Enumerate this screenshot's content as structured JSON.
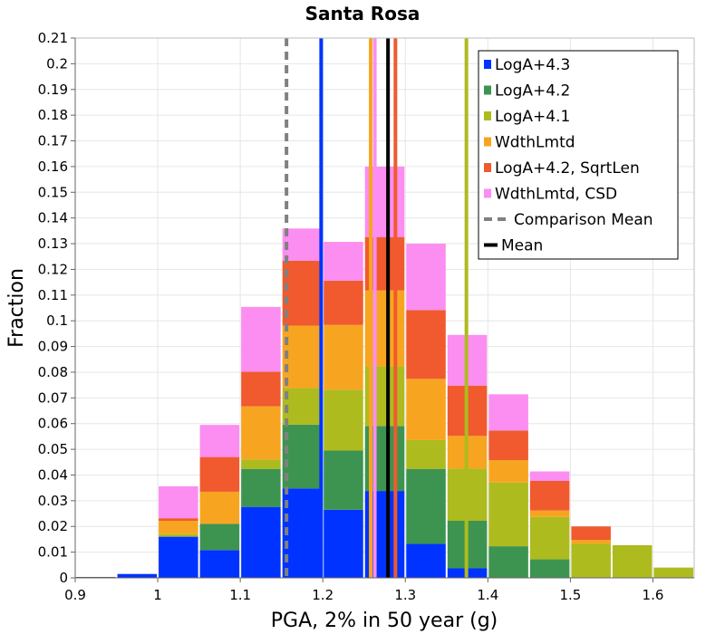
{
  "chart_data": {
    "type": "bar",
    "stacked": true,
    "title": "Santa Rosa",
    "xlabel": "PGA, 2% in 50 year (g)",
    "ylabel": "Fraction",
    "xlim": [
      0.9,
      1.65
    ],
    "ylim": [
      0,
      0.21
    ],
    "x_ticks": [
      0.9,
      1,
      1.1,
      1.2,
      1.3,
      1.4,
      1.5,
      1.6
    ],
    "y_ticks": [
      0,
      0.01,
      0.02,
      0.03,
      0.04,
      0.05,
      0.06,
      0.07,
      0.08,
      0.09,
      0.1,
      0.11,
      0.12,
      0.13,
      0.14,
      0.15,
      0.16,
      0.17,
      0.18,
      0.19,
      0.2,
      0.21
    ],
    "grid": true,
    "legend_position": "top-right",
    "bin_width": 0.05,
    "bin_edges": [
      0.9,
      0.95,
      1.0,
      1.05,
      1.1,
      1.15,
      1.2,
      1.25,
      1.3,
      1.35,
      1.4,
      1.45,
      1.5,
      1.55,
      1.6,
      1.65
    ],
    "series": [
      {
        "name": "LogA+4.3",
        "color": "#0033ff",
        "values": [
          0.0,
          0.0015,
          0.016,
          0.0108,
          0.0276,
          0.0348,
          0.0265,
          0.0338,
          0.0132,
          0.0037,
          0.0,
          0.0,
          0.0,
          0.0,
          0.0
        ]
      },
      {
        "name": "LogA+4.2",
        "color": "#3d9450",
        "values": [
          0.0,
          0.0,
          0.0,
          0.0102,
          0.0148,
          0.0248,
          0.023,
          0.0253,
          0.0292,
          0.0185,
          0.0123,
          0.0072,
          0.0,
          0.0,
          0.0
        ]
      },
      {
        "name": "LogA+4.1",
        "color": "#adbb1e",
        "values": [
          0.0,
          0.0,
          0.001,
          0.0,
          0.0037,
          0.0142,
          0.0237,
          0.0232,
          0.0112,
          0.0203,
          0.0248,
          0.0165,
          0.0132,
          0.0127,
          0.004
        ]
      },
      {
        "name": "WdthLmtd",
        "color": "#f7a520",
        "values": [
          0.0,
          0.0,
          0.0052,
          0.0125,
          0.0206,
          0.0243,
          0.0252,
          0.0295,
          0.0238,
          0.0127,
          0.0087,
          0.0025,
          0.0015,
          0.0,
          0.0
        ]
      },
      {
        "name": "LogA+4.2, SqrtLen",
        "color": "#f05a2e",
        "values": [
          0.0,
          0.0,
          0.001,
          0.0135,
          0.0135,
          0.0253,
          0.0172,
          0.0208,
          0.0268,
          0.0196,
          0.0115,
          0.0115,
          0.0053,
          0.0,
          0.0
        ]
      },
      {
        "name": "WdthLmtd, CSD",
        "color": "#fb8ef0",
        "values": [
          0.0,
          0.0,
          0.0124,
          0.0125,
          0.0252,
          0.0125,
          0.0151,
          0.0274,
          0.0258,
          0.0197,
          0.0141,
          0.0037,
          0.0,
          0.0,
          0.0
        ]
      }
    ],
    "vertical_lines": [
      {
        "name": "LogA+4.3",
        "x": 1.198,
        "color": "#0033ff",
        "style": "solid"
      },
      {
        "name": "WdthLmtd",
        "x": 1.258,
        "color": "#f7a520",
        "style": "solid"
      },
      {
        "name": "WdthLmtd, CSD",
        "x": 1.263,
        "color": "#fb8ef0",
        "style": "solid"
      },
      {
        "name": "LogA+4.2, SqrtLen",
        "x": 1.288,
        "color": "#f05a2e",
        "style": "solid"
      },
      {
        "name": "LogA+4.1",
        "x": 1.374,
        "color": "#adbb1e",
        "style": "solid"
      },
      {
        "name": "Comparison Mean",
        "x": 1.156,
        "color": "#808080",
        "style": "dashed"
      },
      {
        "name": "Mean",
        "x": 1.279,
        "color": "#000000",
        "style": "solid"
      }
    ],
    "legend": [
      {
        "label": "LogA+4.3",
        "color": "#0033ff",
        "kind": "box"
      },
      {
        "label": "LogA+4.2",
        "color": "#3d9450",
        "kind": "box"
      },
      {
        "label": "LogA+4.1",
        "color": "#adbb1e",
        "kind": "box"
      },
      {
        "label": "WdthLmtd",
        "color": "#f7a520",
        "kind": "box"
      },
      {
        "label": "LogA+4.2, SqrtLen",
        "color": "#f05a2e",
        "kind": "box"
      },
      {
        "label": "WdthLmtd, CSD",
        "color": "#fb8ef0",
        "kind": "box"
      },
      {
        "label": "Comparison Mean",
        "color": "#808080",
        "kind": "dashed"
      },
      {
        "label": "Mean",
        "color": "#000000",
        "kind": "line"
      }
    ]
  }
}
